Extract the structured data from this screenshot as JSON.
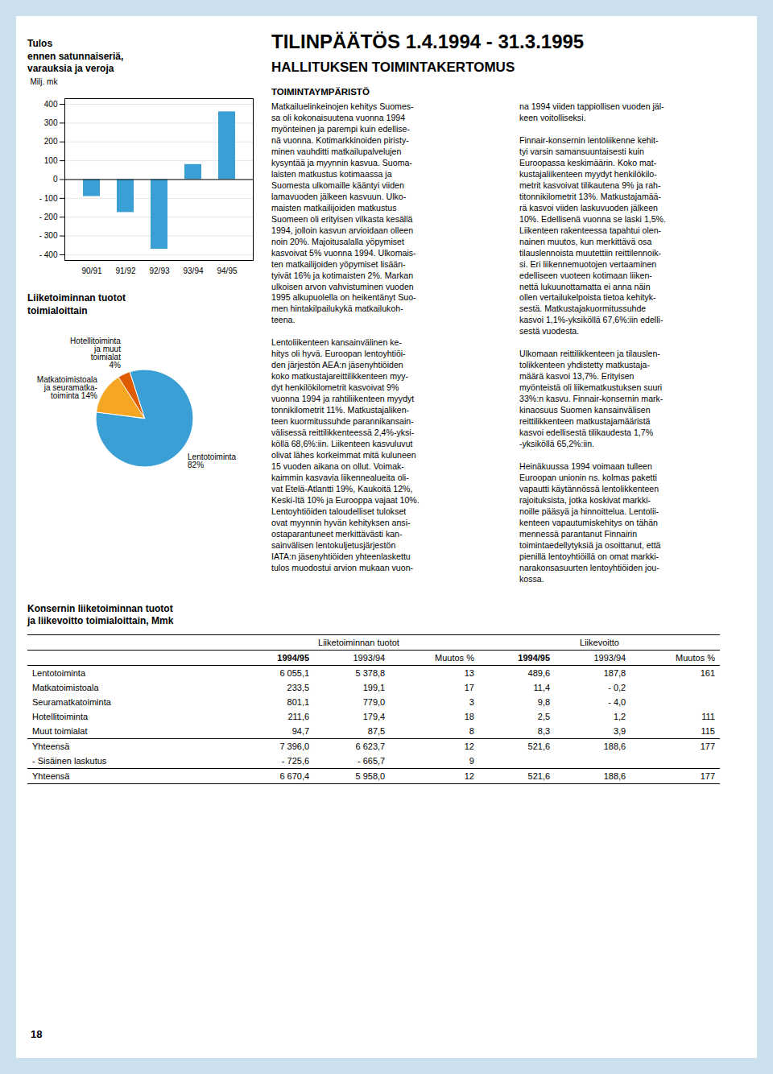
{
  "title": "TILINPÄÄTÖS 1.4.1994 - 31.3.1995",
  "subtitle": "HALLITUKSEN TOIMINTAKERTOMUS",
  "sections": [
    {
      "title": "TOIMINTAYMPÄRISTÖ",
      "columns": [
        "Matkailuelinkeinojen kehitys Suomes-\nsa oli kokonaisuutena vuonna 1994\nmyönteinen ja parempi kuin edellise-\nnä vuonna. Kotimarkkinoiden piristy-\nminen vauhditti matkailupalvelujen\nkysyntää ja myynnin kasvua. Suoma-\nlaisten matkustus kotimaassa ja\nSuomesta ulkomaille kääntyi viiden\nlamavuoden jälkeen kasvuun. Ulko-\nmaisten matkailijoiden matkustus\nSuomeen oli erityisen vilkasta kesällä\n1994, jolloin kasvun arvioidaan olleen\nnoin 20%. Majoitusalalla yöpymiset\nkasvoivat 5% vuonna 1994. Ulkomais-\nten matkailijoiden yöpymiset lisään-\ntyivät 16% ja kotimaisten 2%. Markan\nulkoisen arvon vahvistuminen vuoden\n1995 alkupuolella on heikentänyt Suo-\nmen hintakilpailukykä matkailukoh-\nteena.\n\nLentoliikenteen kansainvälinen ke-\nhitys oli hyvä. Euroopan lentoyhtiöi-\nden järjestön AEA:n jäsenyhtiöiden\nkoko matkustajareittilikkenteen myy-\ndyt henkilökilometrit kasvoivat 9%\nvuonna 1994 ja rahtiliikenteen myydyt\ntonnikilometrit 11%. Matkustajaliken-\nteen kuormitussuhde parannikansain-\nvälisessä reittilikkenteessä 2,4%-yksi-\nköllä 68,6%:iin. Liikenteen kasvuluvut\nolivat lähes korkeimmat mitä kuluneen\n15 vuoden aikana on ollut. Voimak-\nkaimmin kasvavia liikennealueita oli-\nvat Etelä-Atlantti 19%, Kaukoitä 12%,\nKeski-Itä 10% ja Eurooppa vajaat 10%.\nLentoyhtiöiden taloudelliset tulokset\novat myynnin hyvän kehityksen ansi-\nostaparantuneet merkittävästi kan-\nsainvälisen lentokuljetusjärjestön\nIATA:n jäsenyhtiöiden yhteenlaskettu\ntulos muodostui arvion mukaan vuon-",
        "na 1994 viiden tappiollisen vuoden jäl-\nkeen voitolliseksi.\n\nFinnair-konsernin lentoliikenne kehit-\ntyi varsin samansuuntaisesti kuin\nEuroopassa keskimäärin. Koko mat-\nkustajaliikenteen myydyt henkilökilo-\nmetrit kasvoivat tilikautena 9% ja rah-\ntitonnikilometrit 13%. Matkustajamää-\nrä kasvoi viiden laskuvuoden jälkeen\n10%. Edellisenä vuonna se laski 1,5%.\nLiikenteen rakenteessa tapahtui olen-\nnainen muutos, kun merkittävä osa\ntilauslennoista muutettiin reittilennoik-\nsi. Eri liikennemuotojen vertaaminen\nedelliseen vuoteen kotimaan liiken-\nnettä lukuunottamatta ei anna näin\nollen vertailukelpoista tietoa kehityk-\nsestä. Matkustajakuormitussuhde\nkasvoi 1,1%-yksiköllä 67,6%:iin edelli-\nsestä vuodesta.\n\nUlkomaan reittilikkenteen ja tilauslen-\ntolikkenteen yhdistetty matkustaja-\nmäärä kasvoi 13,7%. Erityisen\nmyönteistä oli liikematkustuksen suuri\n33%:n kasvu. Finnair-konsernin mark-\nkinaosuus Suomen kansainvälisen\nreittilikkenteen matkustajamääristä\nkasvoi edellisestä tilikaudesta 1,7%\n-yksiköllä 65,2%:iin.\n\nHeinäkuussa 1994 voimaan tulleen\nEuroopan unionin ns. kolmas paketti\nvapautti käytännössä lentolikkenteen\nrajoituksista, jotka koskivat markki-\nnoille pääsyä ja hinnoittelua. Lentolii-\nkenteen vapautumiskehitys on tähän\nmennessä parantanut Finnairin\ntoimintaedellytyksiä ja osoittanut, että\npienillä lentoyhtiöillä on omat markki-\nnarakonsasuurten lentoyhtiöiden jou-\nkossa."
      ]
    }
  ],
  "table": {
    "title": "Konsernin liiketoiminnan tuotot\nja liikevoitto toimialoittain, Mmk",
    "column_groups": [
      "Liiketoiminnan tuotot",
      "Liikevoitto"
    ],
    "columns": [
      "1994/95",
      "1993/94",
      "Muutos %",
      "1994/95",
      "1993/94",
      "Muutos %"
    ],
    "rows": [
      [
        "Lentotoiminta",
        "6 055,1",
        "5 378,8",
        "13",
        "489,6",
        "187,8",
        "161"
      ],
      [
        "Matkatoimistoala",
        "233,5",
        "199,1",
        "17",
        "11,4",
        "- 0,2",
        null
      ],
      [
        "Seuramatkatoiminta",
        "801,1",
        "779,0",
        "3",
        "9,8",
        "- 4,0",
        null
      ],
      [
        "Hotellitoiminta",
        "211,6",
        "179,4",
        "18",
        "2,5",
        "1,2",
        "111"
      ],
      [
        "Muut toimialat",
        "94,7",
        "87,5",
        "8",
        "8,3",
        "3,9",
        "115"
      ]
    ],
    "sum_rows": [
      [
        "Yhteensä",
        "7 396,0",
        "6 623,7",
        "12",
        "521,6",
        "188,6",
        "177"
      ],
      [
        "- Sisäinen laskutus",
        "- 725,6",
        "- 665,7",
        "9",
        null,
        null,
        null
      ]
    ],
    "total_row": [
      "Yhteensä",
      "6 670,4",
      "5 958,0",
      "12",
      "521,6",
      "188,6",
      "177"
    ]
  },
  "page_number": "18",
  "chart_data": [
    {
      "type": "bar",
      "title": "Tulos\nennen satunnaiseriä,\nvarauksia ja veroja",
      "ylabel": "Milj. mk",
      "categories": [
        "90/91",
        "91/92",
        "92/93",
        "93/94",
        "94/95"
      ],
      "values": [
        -90,
        -175,
        -370,
        80,
        360
      ],
      "color": "#3a9fd5",
      "ylim": [
        -430,
        430
      ],
      "yticks": [
        {
          "value": -400,
          "label": "- 400"
        },
        {
          "value": -300,
          "label": "- 300"
        },
        {
          "value": -200,
          "label": "- 200"
        },
        {
          "value": -100,
          "label": "- 100"
        },
        0,
        100,
        200,
        300,
        400
      ],
      "grid": true
    },
    {
      "type": "pie",
      "title": "Liiketoiminnan tuotot\ntoimialoittain",
      "values": [
        82,
        14,
        4
      ],
      "value_labels": [
        "Lentotoiminta\n82%",
        "Matkatoimistoala\nja seuramatka-\ntoiminta 14%",
        "Hotellitoiminta\nja muut\ntoimialat\n4%"
      ],
      "colors": [
        "#3a9fd5",
        "#f5a623",
        "#e05a00"
      ],
      "data_labels": true
    }
  ]
}
